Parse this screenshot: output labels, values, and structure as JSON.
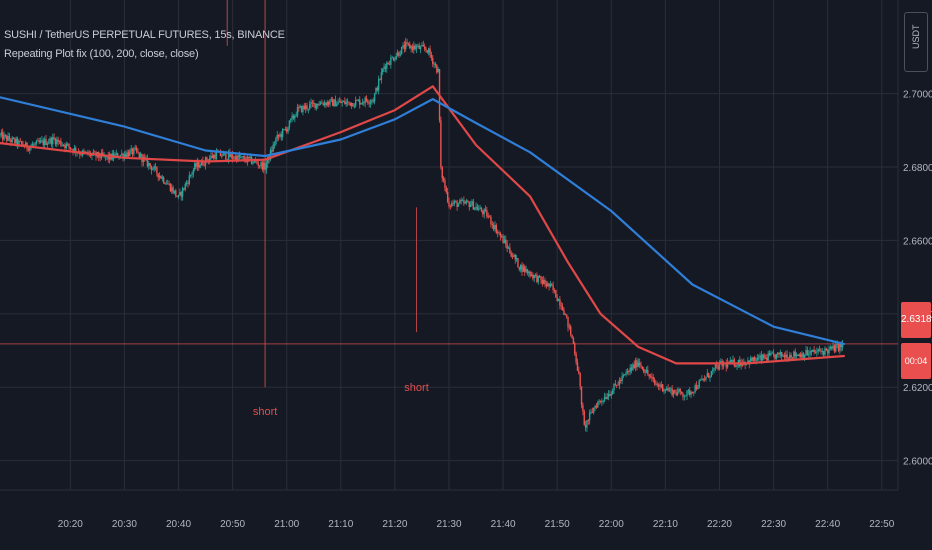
{
  "header": {
    "symbol_line": "SUSHI / TetherUS PERPETUAL FUTURES, 15s, BINANCE",
    "indicator_line": "Repeating Plot fix (100, 200, close, close)"
  },
  "price_scale": {
    "unit": "USDT",
    "current_price": "2.6318",
    "timer": "00:04"
  },
  "colors": {
    "background": "#151924",
    "grid": "#2a2e39",
    "up_candle": "#26a69a",
    "down_candle": "#ef5350",
    "ma_fast": "#e04848",
    "ma_slow": "#2f7fd8",
    "signal": "#e05050",
    "axis_text": "#b2b5be"
  },
  "chart_data": {
    "type": "candlestick",
    "title": "SUSHI / TetherUS PERPETUAL FUTURES, 15s, BINANCE",
    "x_ticks": [
      "20:20",
      "20:30",
      "20:40",
      "20:50",
      "21:00",
      "21:10",
      "21:20",
      "21:30",
      "21:40",
      "21:50",
      "22:00",
      "22:10",
      "22:20",
      "22:30",
      "22:40",
      "22:50"
    ],
    "y_ticks": [
      "2.7000",
      "2.6800",
      "2.6600",
      "2.6400",
      "2.6200",
      "2.6000"
    ],
    "ylim": [
      2.592,
      2.7255
    ],
    "xlim_minutes": [
      1207,
      1373
    ],
    "grid": true,
    "price_path": [
      {
        "t": 1207,
        "p": 2.6885
      },
      {
        "t": 1212,
        "p": 2.6855
      },
      {
        "t": 1217,
        "p": 2.6875
      },
      {
        "t": 1222,
        "p": 2.6838
      },
      {
        "t": 1227,
        "p": 2.6825
      },
      {
        "t": 1232,
        "p": 2.6842
      },
      {
        "t": 1235,
        "p": 2.68
      },
      {
        "t": 1238,
        "p": 2.6755
      },
      {
        "t": 1240,
        "p": 2.6715
      },
      {
        "t": 1243,
        "p": 2.68
      },
      {
        "t": 1247,
        "p": 2.6835
      },
      {
        "t": 1251,
        "p": 2.6825
      },
      {
        "t": 1254,
        "p": 2.6815
      },
      {
        "t": 1256,
        "p": 2.68
      },
      {
        "t": 1258,
        "p": 2.6875
      },
      {
        "t": 1260,
        "p": 2.6905
      },
      {
        "t": 1262,
        "p": 2.6955
      },
      {
        "t": 1266,
        "p": 2.6975
      },
      {
        "t": 1272,
        "p": 2.6975
      },
      {
        "t": 1276,
        "p": 2.6985
      },
      {
        "t": 1278,
        "p": 2.7075
      },
      {
        "t": 1282,
        "p": 2.713
      },
      {
        "t": 1286,
        "p": 2.712
      },
      {
        "t": 1288,
        "p": 2.706
      },
      {
        "t": 1288.5,
        "p": 2.679
      },
      {
        "t": 1290,
        "p": 2.67
      },
      {
        "t": 1294,
        "p": 2.67
      },
      {
        "t": 1297,
        "p": 2.667
      },
      {
        "t": 1300,
        "p": 2.66
      },
      {
        "t": 1303,
        "p": 2.653
      },
      {
        "t": 1306,
        "p": 2.65
      },
      {
        "t": 1309,
        "p": 2.647
      },
      {
        "t": 1311,
        "p": 2.642
      },
      {
        "t": 1313,
        "p": 2.632
      },
      {
        "t": 1314,
        "p": 2.623
      },
      {
        "t": 1315,
        "p": 2.609
      },
      {
        "t": 1317,
        "p": 2.615
      },
      {
        "t": 1320,
        "p": 2.619
      },
      {
        "t": 1323,
        "p": 2.624
      },
      {
        "t": 1325,
        "p": 2.627
      },
      {
        "t": 1328,
        "p": 2.621
      },
      {
        "t": 1331,
        "p": 2.619
      },
      {
        "t": 1334,
        "p": 2.618
      },
      {
        "t": 1337,
        "p": 2.622
      },
      {
        "t": 1340,
        "p": 2.626
      },
      {
        "t": 1345,
        "p": 2.627
      },
      {
        "t": 1350,
        "p": 2.6285
      },
      {
        "t": 1355,
        "p": 2.629
      },
      {
        "t": 1360,
        "p": 2.63
      },
      {
        "t": 1363,
        "p": 2.6315
      }
    ],
    "series": [
      {
        "name": "100",
        "color": "#e04848",
        "points": [
          {
            "t": 1207,
            "p": 2.6865
          },
          {
            "t": 1230,
            "p": 2.6825
          },
          {
            "t": 1245,
            "p": 2.6815
          },
          {
            "t": 1256,
            "p": 2.682
          },
          {
            "t": 1270,
            "p": 2.6895
          },
          {
            "t": 1280,
            "p": 2.6955
          },
          {
            "t": 1287,
            "p": 2.702
          },
          {
            "t": 1295,
            "p": 2.686
          },
          {
            "t": 1305,
            "p": 2.672
          },
          {
            "t": 1312,
            "p": 2.654
          },
          {
            "t": 1318,
            "p": 2.64
          },
          {
            "t": 1325,
            "p": 2.631
          },
          {
            "t": 1332,
            "p": 2.6265
          },
          {
            "t": 1345,
            "p": 2.6265
          },
          {
            "t": 1363,
            "p": 2.6285
          }
        ]
      },
      {
        "name": "200",
        "color": "#2f7fd8",
        "points": [
          {
            "t": 1207,
            "p": 2.699
          },
          {
            "t": 1230,
            "p": 2.691
          },
          {
            "t": 1245,
            "p": 2.6845
          },
          {
            "t": 1256,
            "p": 2.683
          },
          {
            "t": 1270,
            "p": 2.6875
          },
          {
            "t": 1280,
            "p": 2.693
          },
          {
            "t": 1287,
            "p": 2.6985
          },
          {
            "t": 1295,
            "p": 2.692
          },
          {
            "t": 1305,
            "p": 2.684
          },
          {
            "t": 1320,
            "p": 2.668
          },
          {
            "t": 1335,
            "p": 2.648
          },
          {
            "t": 1350,
            "p": 2.6365
          },
          {
            "t": 1363,
            "p": 2.6318
          }
        ]
      }
    ],
    "vertical_lines": [
      {
        "t": 1249,
        "from": 2.7255,
        "to": 2.713,
        "color": "#e05050"
      },
      {
        "t": 1256,
        "from": 2.7255,
        "to": 2.62,
        "color": "#e05050"
      },
      {
        "t": 1284,
        "from": 2.669,
        "to": 2.635,
        "color": "#e05050"
      }
    ],
    "annotations": [
      {
        "text": "short",
        "t": 1256,
        "p": 2.6125,
        "color": "#e05050"
      },
      {
        "text": "short",
        "t": 1284,
        "p": 2.619,
        "color": "#e05050"
      }
    ],
    "current_price_line": {
      "p": 2.6318,
      "label": "2.6318",
      "color": "#e05050"
    }
  }
}
